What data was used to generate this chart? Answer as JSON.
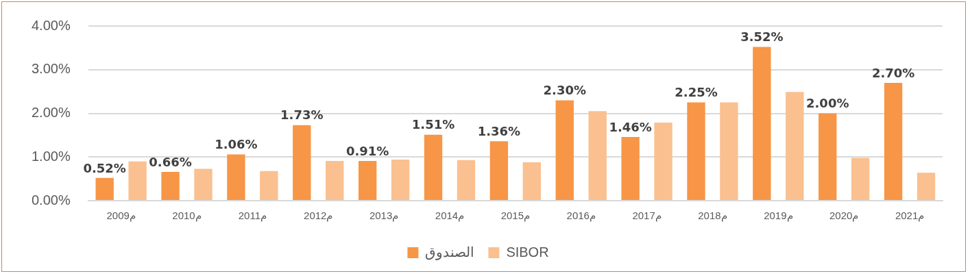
{
  "chart_data": {
    "type": "bar",
    "categories": [
      "2009م",
      "2010م",
      "2011م",
      "2012م",
      "2013م",
      "2014م",
      "2015م",
      "2016م",
      "2017م",
      "2018م",
      "2019م",
      "2020م",
      "2021م"
    ],
    "series": [
      {
        "name": "الصندوق",
        "color": "#f79646",
        "values": [
          0.52,
          0.66,
          1.06,
          1.73,
          0.91,
          1.51,
          1.36,
          2.3,
          1.46,
          2.25,
          3.52,
          2.0,
          2.7
        ],
        "value_labels": [
          "0.52%",
          "0.66%",
          "1.06%",
          "1.73%",
          "0.91%",
          "1.51%",
          "1.36%",
          "2.30%",
          "1.46%",
          "2.25%",
          "3.52%",
          "2.00%",
          "2.70%"
        ]
      },
      {
        "name": "SIBOR",
        "color": "#fac090",
        "values": [
          0.9,
          0.73,
          0.68,
          0.91,
          0.94,
          0.93,
          0.88,
          2.05,
          1.79,
          2.25,
          2.49,
          0.98,
          0.64
        ]
      }
    ],
    "ylim": [
      0,
      4
    ],
    "yticks": [
      {
        "value": 0,
        "label": "0.00%"
      },
      {
        "value": 1,
        "label": "1.00%"
      },
      {
        "value": 2,
        "label": "2.00%"
      },
      {
        "value": 3,
        "label": "3.00%"
      },
      {
        "value": 4,
        "label": "4.00%"
      }
    ],
    "grid": "y",
    "legend": "bottom"
  }
}
